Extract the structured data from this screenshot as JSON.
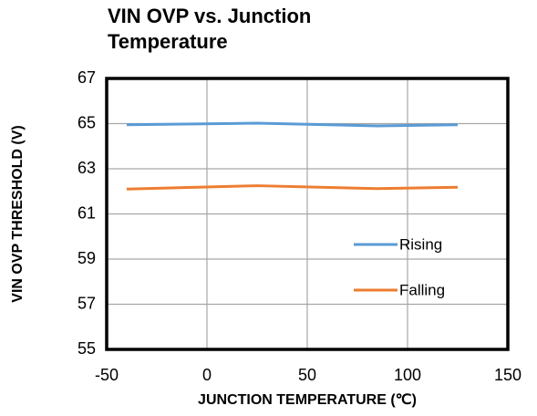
{
  "chart_data": {
    "type": "line",
    "title": "VIN OVP vs. Junction Temperature",
    "xlabel": "JUNCTION TEMPERATURE (℃)",
    "ylabel": "VIN OVP THRESHOLD (V)",
    "x": [
      -40,
      25,
      85,
      125
    ],
    "series": [
      {
        "name": "Rising",
        "color": "#5b9bd5",
        "values": [
          64.95,
          65.02,
          64.9,
          64.95
        ]
      },
      {
        "name": "Falling",
        "color": "#ed7d31",
        "values": [
          62.1,
          62.25,
          62.12,
          62.18
        ]
      }
    ],
    "xlim": [
      -50,
      150
    ],
    "xticks": [
      -50,
      0,
      50,
      100,
      150
    ],
    "ylim": [
      55,
      67
    ],
    "yticks": [
      55,
      57,
      59,
      61,
      63,
      65,
      67
    ],
    "grid": true,
    "legend": "right"
  }
}
